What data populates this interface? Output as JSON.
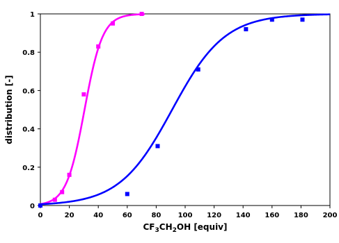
{
  "chart_data": {
    "type": "scatter",
    "title": "",
    "xlabel": {
      "base": "CF",
      "sub1": "3",
      "mid": "CH",
      "sub2": "2",
      "end": "OH [equiv]"
    },
    "ylabel": "distribution [-]",
    "xlim": [
      0,
      200
    ],
    "ylim": [
      0,
      1
    ],
    "x_ticks": [
      "0",
      "20",
      "40",
      "60",
      "80",
      "100",
      "120",
      "140",
      "160",
      "180",
      "200"
    ],
    "y_ticks": [
      "0",
      "0.2",
      "0.4",
      "0.6",
      "0.8",
      "1"
    ],
    "grid": false,
    "series": [
      {
        "color": "#ff00ff",
        "points": [
          [
            0,
            0.0
          ],
          [
            10,
            0.03
          ],
          [
            15,
            0.07
          ],
          [
            20,
            0.16
          ],
          [
            30,
            0.58
          ],
          [
            40,
            0.83
          ],
          [
            50,
            0.95
          ],
          [
            70,
            1.0
          ]
        ],
        "fit": {
          "midpoint": 30.5,
          "slope": 0.16,
          "x_range": [
            0,
            72
          ]
        }
      },
      {
        "color": "#0000ff",
        "points": [
          [
            0,
            0.0
          ],
          [
            60,
            0.06
          ],
          [
            81,
            0.31
          ],
          [
            109,
            0.71
          ],
          [
            142,
            0.92
          ],
          [
            160,
            0.97
          ],
          [
            181,
            0.97
          ]
        ],
        "fit": {
          "midpoint": 91,
          "slope": 0.055,
          "x_range": [
            0,
            200
          ]
        }
      }
    ]
  }
}
